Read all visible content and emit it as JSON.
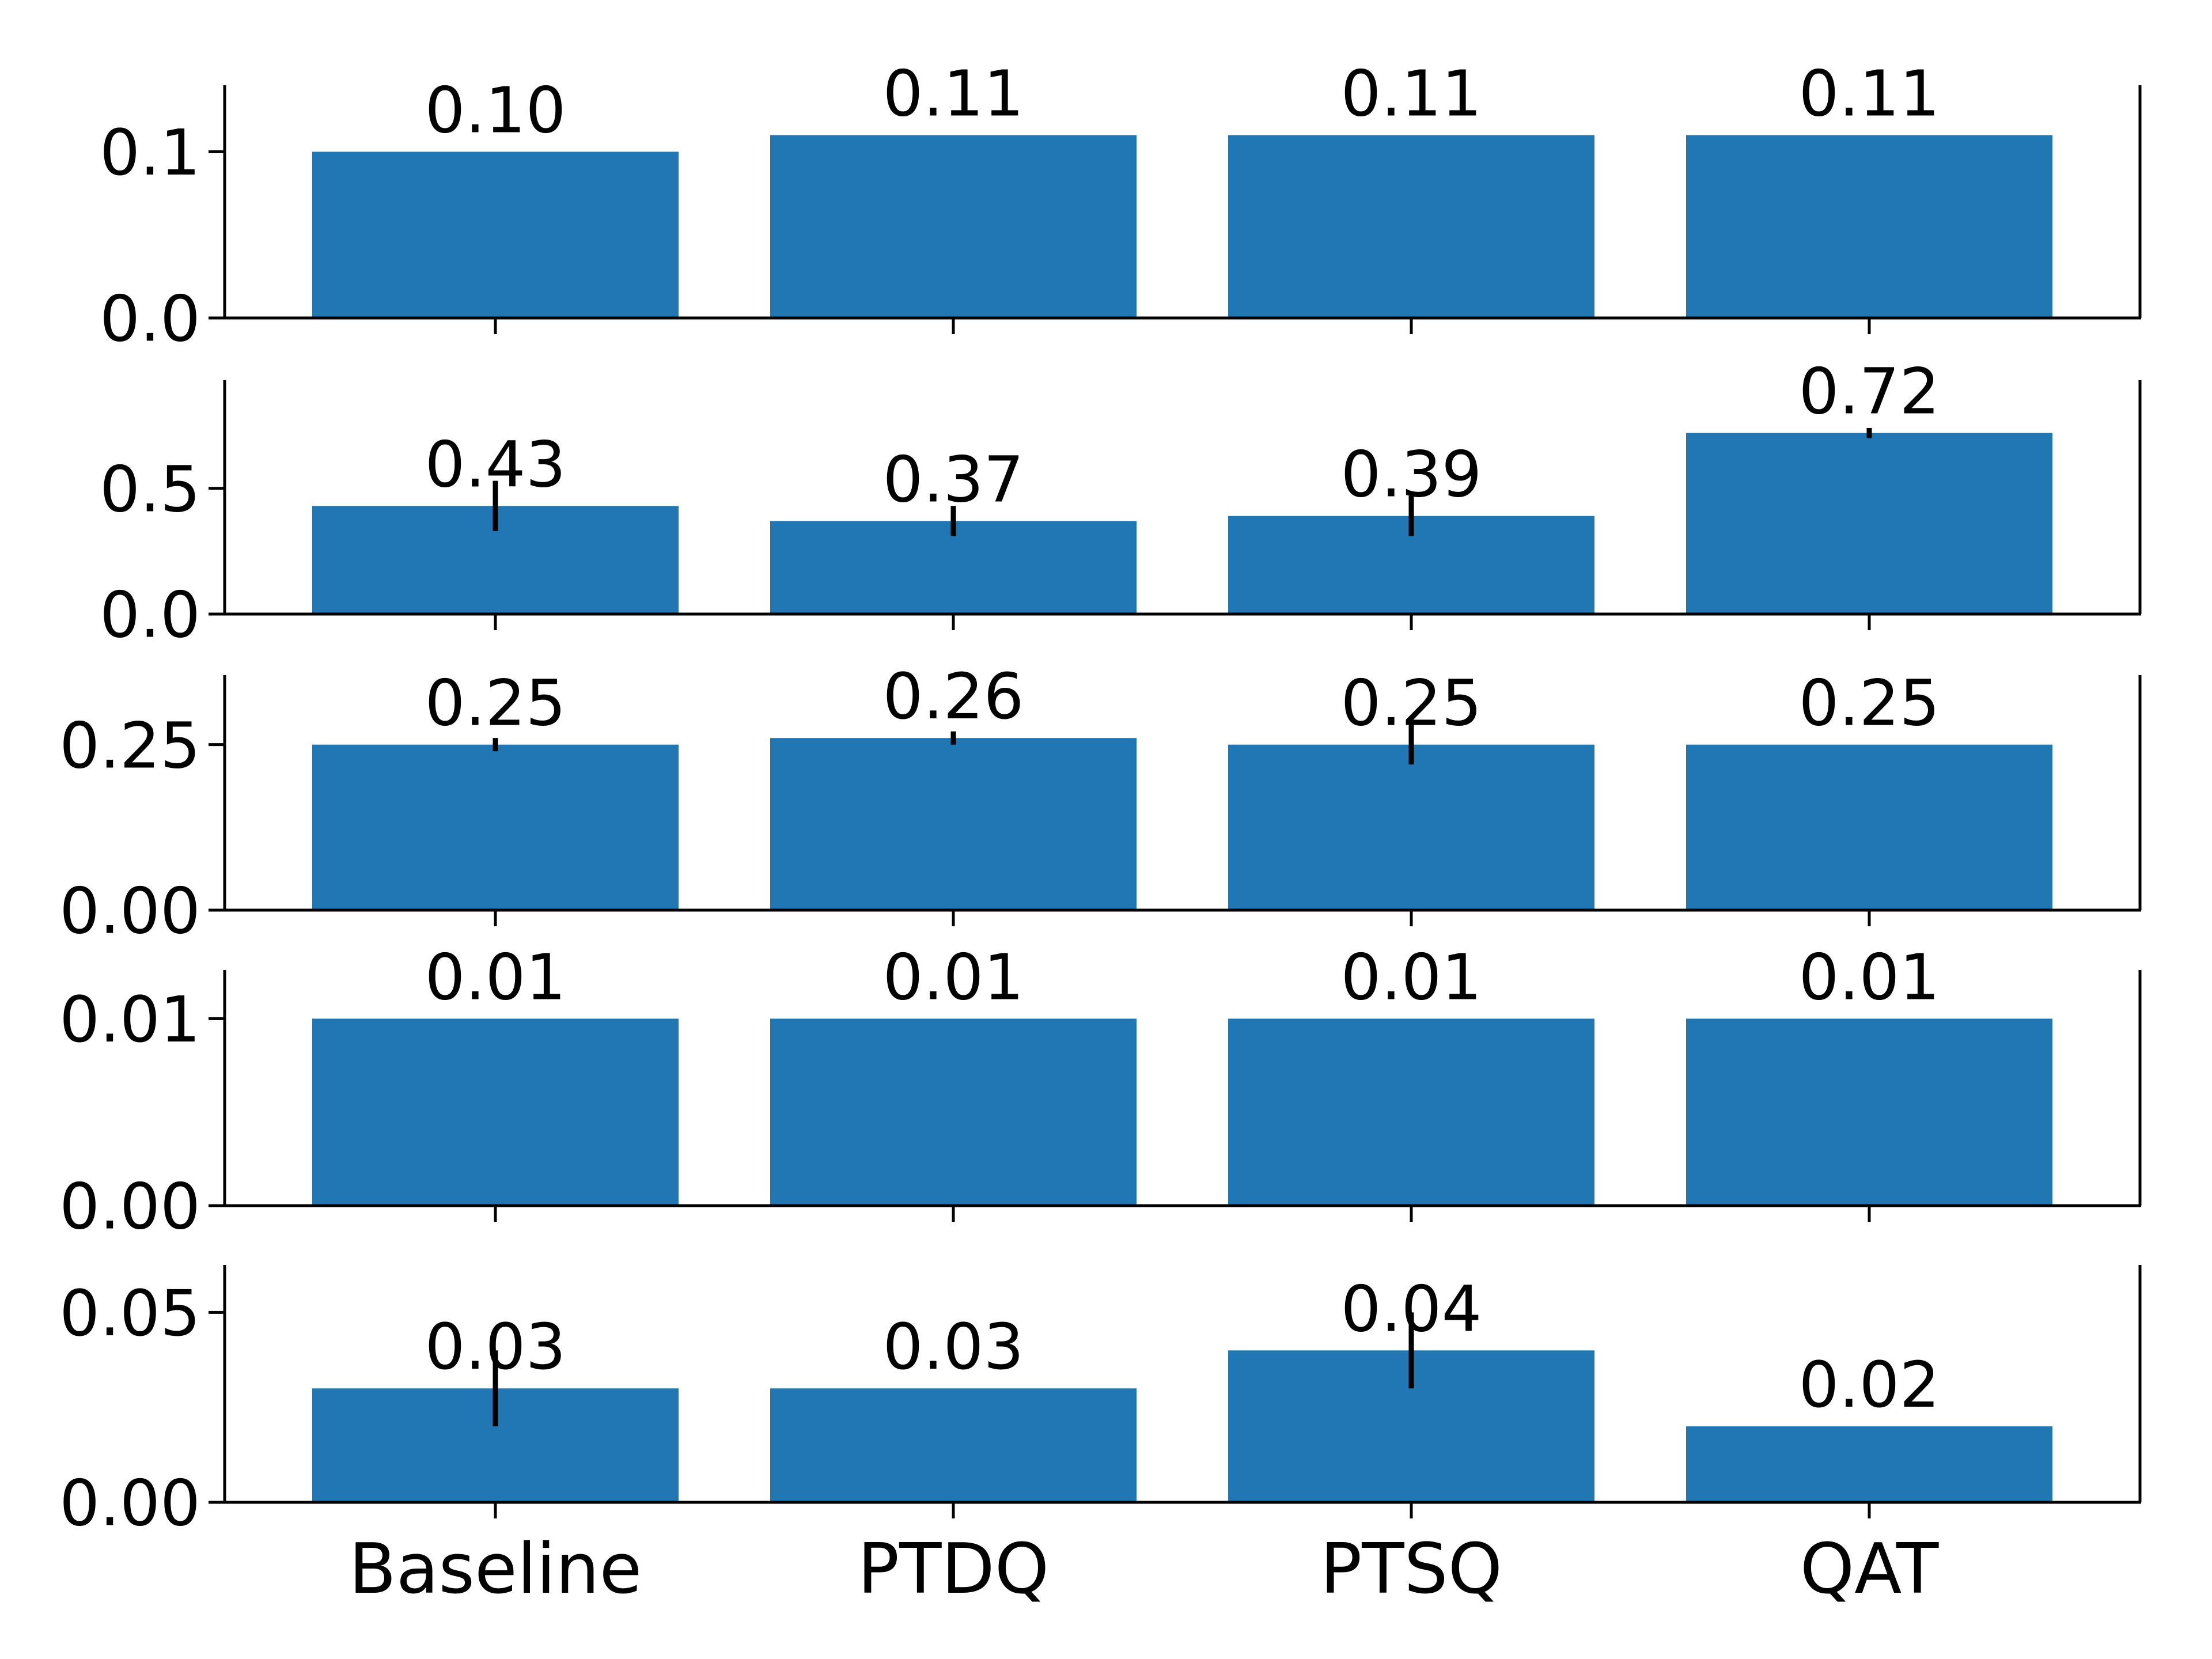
{
  "chart_data": {
    "type": "bar",
    "layout": "stacked-subplots-shared-x",
    "categories": [
      "Baseline",
      "PTDQ",
      "PTSQ",
      "QAT"
    ],
    "colors": {
      "bar": "#2077b4",
      "axis": "#000000",
      "errorbar": "#000000",
      "background": "#ffffff"
    },
    "panels": [
      {
        "ylim": [
          0,
          0.14
        ],
        "yticks": [
          0.0,
          0.1
        ],
        "ytick_labels": [
          "0.0",
          "0.1"
        ],
        "values": [
          0.1,
          0.11,
          0.11,
          0.11
        ],
        "errors": [
          0,
          0,
          0,
          0
        ],
        "value_labels": [
          "0.10",
          "0.11",
          "0.11",
          "0.11"
        ]
      },
      {
        "ylim": [
          0,
          0.93
        ],
        "yticks": [
          0.0,
          0.5
        ],
        "ytick_labels": [
          "0.0",
          "0.5"
        ],
        "values": [
          0.43,
          0.37,
          0.39,
          0.72
        ],
        "errors": [
          0.1,
          0.06,
          0.08,
          0.02
        ],
        "value_labels": [
          "0.43",
          "0.37",
          "0.39",
          "0.72"
        ]
      },
      {
        "ylim": [
          0,
          0.355
        ],
        "yticks": [
          0.0,
          0.25
        ],
        "ytick_labels": [
          "0.00",
          "0.25"
        ],
        "values": [
          0.25,
          0.26,
          0.25,
          0.25
        ],
        "errors": [
          0.01,
          0.01,
          0.03,
          0
        ],
        "value_labels": [
          "0.25",
          "0.26",
          "0.25",
          "0.25"
        ]
      },
      {
        "ylim": [
          0,
          0.0126
        ],
        "yticks": [
          0.0,
          0.01
        ],
        "ytick_labels": [
          "0.00",
          "0.01"
        ],
        "values": [
          0.01,
          0.01,
          0.01,
          0.01
        ],
        "errors": [
          0,
          0,
          0,
          0
        ],
        "value_labels": [
          "0.01",
          "0.01",
          "0.01",
          "0.01"
        ]
      },
      {
        "ylim": [
          0,
          0.0625
        ],
        "yticks": [
          0.0,
          0.05
        ],
        "ytick_labels": [
          "0.00",
          "0.05"
        ],
        "values": [
          0.03,
          0.03,
          0.04,
          0.02
        ],
        "errors": [
          0.01,
          0,
          0.01,
          0
        ],
        "value_labels": [
          "0.03",
          "0.03",
          "0.04",
          "0.02"
        ]
      }
    ]
  }
}
